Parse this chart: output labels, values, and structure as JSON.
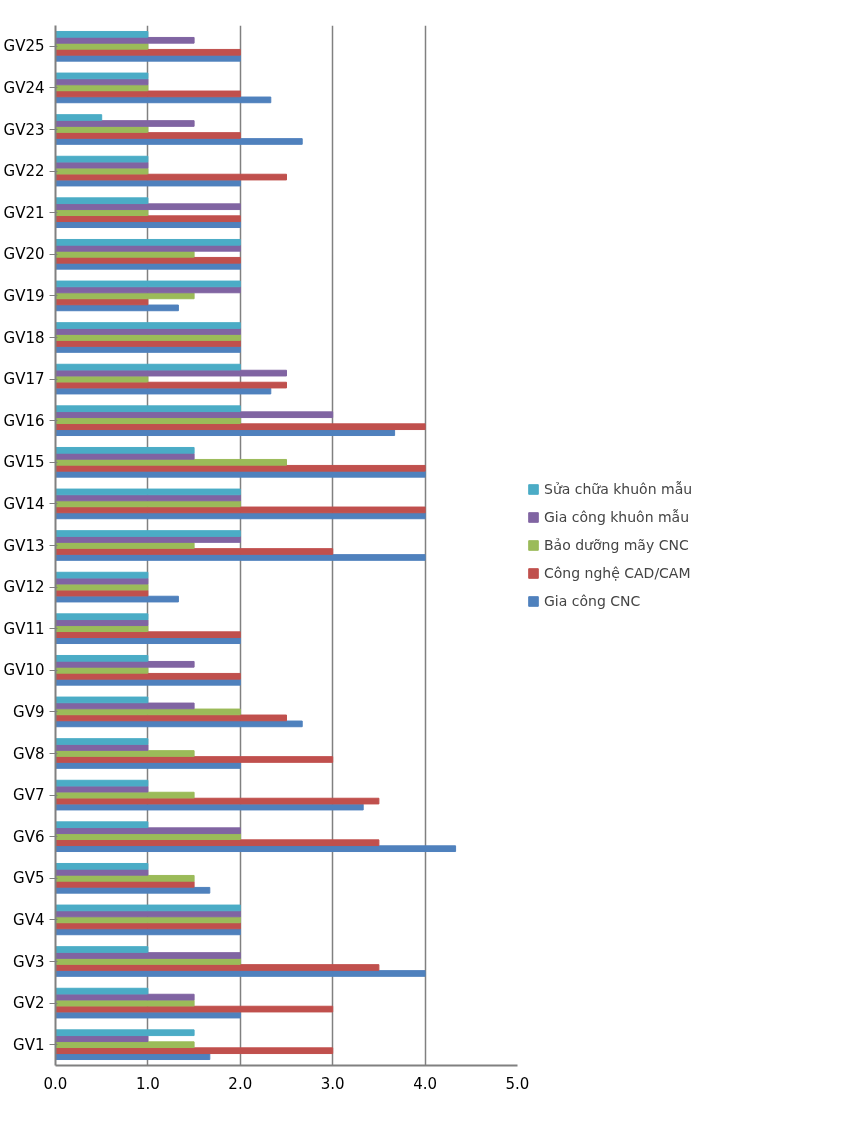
{
  "chart_data": {
    "type": "bar",
    "orientation": "horizontal",
    "categories": [
      "GV25",
      "GV24",
      "GV23",
      "GV22",
      "GV21",
      "GV20",
      "GV19",
      "GV18",
      "GV17",
      "GV16",
      "GV15",
      "GV14",
      "GV13",
      "GV12",
      "GV11",
      "GV10",
      "GV9",
      "GV8",
      "GV7",
      "GV6",
      "GV5",
      "GV4",
      "GV3",
      "GV2",
      "GV1"
    ],
    "series": [
      {
        "name": "Gia công CNC",
        "color": "#4f81bd",
        "values": [
          2,
          2.33,
          2.67,
          2,
          2,
          2,
          1.33,
          2,
          2.33,
          3.67,
          4,
          4,
          4,
          1.33,
          2,
          2,
          2.67,
          2,
          3.33,
          4.33,
          1.67,
          2,
          4,
          2,
          1.67
        ]
      },
      {
        "name": "Công nghệ CAD/CAM",
        "color": "#c0504d",
        "values": [
          2,
          2,
          2,
          2.5,
          2,
          2,
          1,
          2,
          2.5,
          4,
          4,
          4,
          3,
          1,
          2,
          2,
          2.5,
          3,
          3.5,
          3.5,
          1.5,
          2,
          3.5,
          3,
          3
        ]
      },
      {
        "name": "Bảo dưỡng mãy CNC",
        "color": "#9bbb59",
        "values": [
          1,
          1,
          1,
          1,
          1,
          1.5,
          1.5,
          2,
          1,
          2,
          2.5,
          2,
          1.5,
          1,
          1,
          1,
          2,
          1.5,
          1.5,
          2,
          1.5,
          2,
          2,
          1.5,
          1.5
        ]
      },
      {
        "name": "Gia công khuôn mẫu",
        "color": "#8064a2",
        "values": [
          1.5,
          1,
          1.5,
          1,
          2,
          2,
          2,
          2,
          2.5,
          3,
          1.5,
          2,
          2,
          1,
          1,
          1.5,
          1.5,
          1,
          1,
          2,
          1,
          2,
          2,
          1.5,
          1
        ]
      },
      {
        "name": "Sửa chữa khuôn mẫu",
        "color": "#4bacc6",
        "values": [
          1,
          1,
          0.5,
          1,
          1,
          2,
          2,
          2,
          2,
          2,
          1.5,
          2,
          2,
          1,
          1,
          1,
          1,
          1,
          1,
          1,
          1,
          2,
          1,
          1,
          1.5
        ]
      }
    ],
    "xlim": [
      0,
      5
    ],
    "xticks": [
      {
        "value": 0,
        "label": "0.0"
      },
      {
        "value": 1,
        "label": "1.0"
      },
      {
        "value": 2,
        "label": "2.0"
      },
      {
        "value": 3,
        "label": "3.0"
      },
      {
        "value": 4,
        "label": "4.0"
      },
      {
        "value": 5,
        "label": "5.0"
      }
    ],
    "grid": "x",
    "legend": "right"
  }
}
